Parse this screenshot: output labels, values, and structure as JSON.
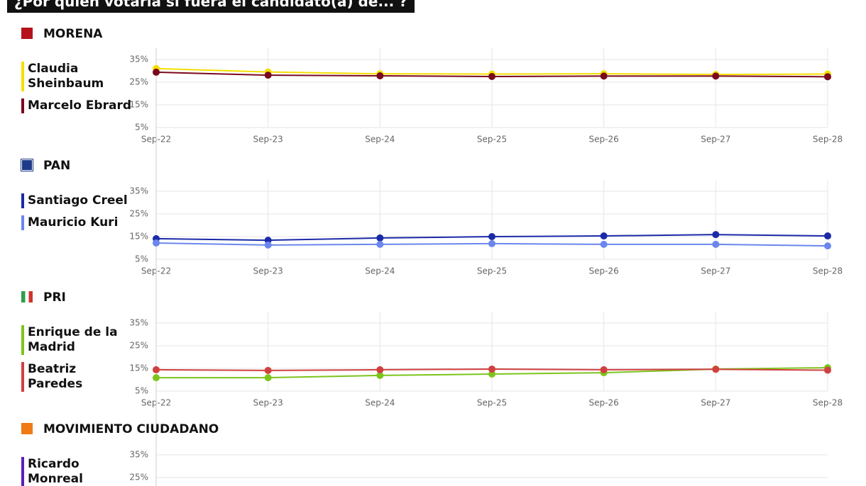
{
  "title": "¿Por quién votaría si fuera el candidato(a) de... ?",
  "chart_data": [
    {
      "type": "line",
      "title": "MORENA",
      "categories": [
        "Sep-22",
        "Sep-23",
        "Sep-24",
        "Sep-25",
        "Sep-26",
        "Sep-27",
        "Sep-28"
      ],
      "ylim": [
        5,
        40
      ],
      "yticks": [
        {
          "value": 5,
          "label": "5%"
        },
        {
          "value": 15,
          "label": "15%"
        },
        {
          "value": 25,
          "label": "25%"
        },
        {
          "value": 35,
          "label": "35%"
        }
      ],
      "grid": true,
      "series": [
        {
          "name": "Claudia Sheinbaum",
          "color": "#f5de00",
          "values": [
            31,
            29.5,
            28.7,
            28.6,
            28.7,
            28.4,
            28.6
          ]
        },
        {
          "name": "Marcelo Ebrard",
          "color": "#7a0a1e",
          "values": [
            29.4,
            28.1,
            27.8,
            27.5,
            27.7,
            27.7,
            27.4
          ]
        }
      ]
    },
    {
      "type": "line",
      "title": "PAN",
      "categories": [
        "Sep-22",
        "Sep-23",
        "Sep-24",
        "Sep-25",
        "Sep-26",
        "Sep-27",
        "Sep-28"
      ],
      "ylim": [
        5,
        40
      ],
      "yticks": [
        {
          "value": 5,
          "label": "5%"
        },
        {
          "value": 15,
          "label": "15%"
        },
        {
          "value": 25,
          "label": "25%"
        },
        {
          "value": 35,
          "label": "35%"
        }
      ],
      "grid": true,
      "series": [
        {
          "name": "Santiago Creel",
          "color": "#1a2aa8",
          "values": [
            14.1,
            13.4,
            14.4,
            15,
            15.3,
            15.9,
            15.3
          ]
        },
        {
          "name": "Mauricio Kuri",
          "color": "#6b86ee",
          "values": [
            12.2,
            11.3,
            11.6,
            11.9,
            11.6,
            11.6,
            10.9
          ]
        }
      ]
    },
    {
      "type": "line",
      "title": "PRI",
      "categories": [
        "Sep-22",
        "Sep-23",
        "Sep-24",
        "Sep-25",
        "Sep-26",
        "Sep-27",
        "Sep-28"
      ],
      "ylim": [
        5,
        40
      ],
      "yticks": [
        {
          "value": 5,
          "label": "5%"
        },
        {
          "value": 15,
          "label": "15%"
        },
        {
          "value": 25,
          "label": "25%"
        },
        {
          "value": 35,
          "label": "35%"
        }
      ],
      "grid": true,
      "series": [
        {
          "name": "Enrique de la Madrid",
          "color": "#7cc41c",
          "values": [
            10.9,
            10.9,
            11.9,
            12.5,
            13.1,
            14.7,
            15.3
          ]
        },
        {
          "name": "Beatriz Paredes",
          "color": "#d04040",
          "values": [
            14.4,
            14.1,
            14.4,
            14.7,
            14.4,
            14.6,
            14.2
          ]
        }
      ]
    },
    {
      "type": "line",
      "title": "MOVIMIENTO CIUDADANO",
      "ylim": [
        5,
        40
      ],
      "yticks": [
        {
          "value": 25,
          "label": "25%"
        },
        {
          "value": 35,
          "label": "35%"
        }
      ],
      "grid": true,
      "series": [
        {
          "name": "Ricardo Monreal",
          "color": "#5a1fb8"
        }
      ]
    }
  ]
}
